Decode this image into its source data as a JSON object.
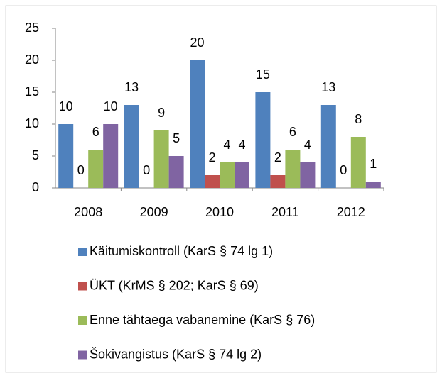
{
  "chart_data": {
    "type": "bar",
    "categories": [
      "2008",
      "2009",
      "2010",
      "2011",
      "2012"
    ],
    "series": [
      {
        "name": "Käitumiskontroll (KarS § 74 lg 1)",
        "color": "#4f81bd",
        "values": [
          10,
          13,
          20,
          15,
          13
        ]
      },
      {
        "name": "ÜKT (KrMS § 202; KarS § 69)",
        "color": "#c0504d",
        "values": [
          0,
          0,
          2,
          2,
          0
        ]
      },
      {
        "name": "Enne tähtaega vabanemine (KarS § 76)",
        "color": "#9bbb59",
        "values": [
          6,
          9,
          4,
          6,
          8
        ]
      },
      {
        "name": "Šokivangistus (KarS § 74 lg 2)",
        "color": "#8064a2",
        "values": [
          10,
          5,
          4,
          4,
          1
        ]
      }
    ],
    "ylim": [
      0,
      25
    ],
    "yticks": [
      0,
      5,
      10,
      15,
      20,
      25
    ],
    "grid": false,
    "legend": "bottom"
  }
}
